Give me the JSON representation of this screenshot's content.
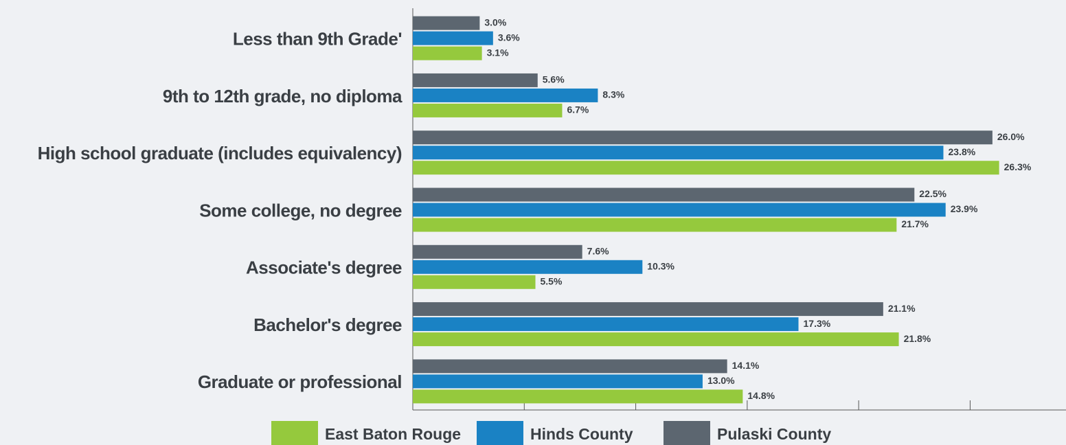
{
  "chart_data": {
    "type": "bar",
    "orientation": "horizontal",
    "categories": [
      "Less than 9th Grade'",
      "9th to 12th grade, no diploma",
      "High school graduate (includes equivalency)",
      "Some college, no degree",
      "Associate's degree",
      "Bachelor's degree",
      "Graduate or professional"
    ],
    "series": [
      {
        "name": "East Baton Rouge",
        "color": "#95c93d",
        "values": [
          3.1,
          6.7,
          26.3,
          21.7,
          5.5,
          21.8,
          14.8
        ],
        "value_labels": [
          "3.1%",
          "6.7%",
          "26.3%",
          "21.7%",
          "5.5%",
          "21.8%",
          "14.8%"
        ]
      },
      {
        "name": "Hinds County",
        "color": "#1a82c4",
        "values": [
          3.6,
          8.3,
          23.8,
          23.9,
          10.3,
          17.3,
          13.0
        ],
        "value_labels": [
          "3.6%",
          "8.3%",
          "23.8%",
          "23.9%",
          "10.3%",
          "17.3%",
          "13.0%"
        ]
      },
      {
        "name": "Pulaski County",
        "color": "#5c6670",
        "values": [
          3.0,
          5.6,
          26.0,
          22.5,
          7.6,
          21.1,
          14.1
        ],
        "value_labels": [
          "3.0%",
          "5.6%",
          "26.0%",
          "22.5%",
          "7.6%",
          "21.1%",
          "14.1%"
        ]
      }
    ],
    "xlim": [
      0,
      29.3
    ],
    "xticks": [
      5,
      10,
      15,
      20,
      25
    ]
  }
}
